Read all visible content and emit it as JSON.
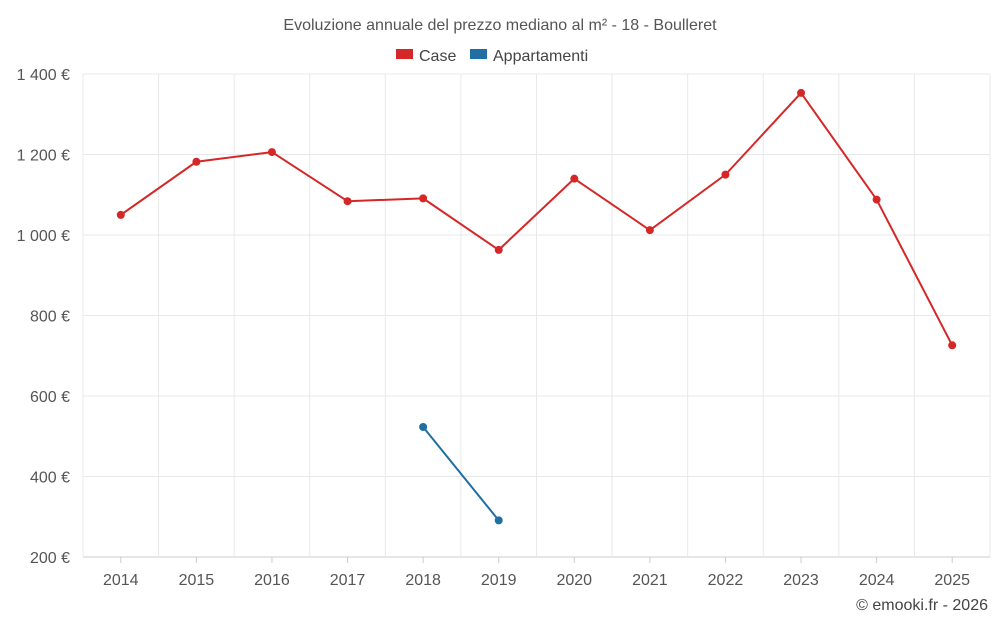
{
  "chart_data": {
    "type": "line",
    "title": "Evoluzione annuale del prezzo mediano al m² - 18 - Boulleret",
    "categories": [
      "2014",
      "2015",
      "2016",
      "2017",
      "2018",
      "2019",
      "2020",
      "2021",
      "2022",
      "2023",
      "2024",
      "2025"
    ],
    "ylim": [
      200,
      1400
    ],
    "yticks": [
      200,
      400,
      600,
      800,
      1000,
      1200,
      1400
    ],
    "ytick_labels": [
      "200 €",
      "400 €",
      "600 €",
      "800 €",
      "1 000 €",
      "1 200 €",
      "1 400 €"
    ],
    "series": [
      {
        "name": "Case",
        "color": "#d62728",
        "values": [
          1050,
          1182,
          1206,
          1084,
          1091,
          963,
          1140,
          1012,
          1150,
          1353,
          1088,
          726
        ]
      },
      {
        "name": "Appartamenti",
        "color": "#1f6fa3",
        "values": [
          null,
          null,
          null,
          null,
          523,
          291,
          null,
          null,
          null,
          null,
          null,
          null
        ]
      }
    ],
    "legend_position": "top-center",
    "grid": true
  },
  "credit": "© emooki.fr - 2026"
}
